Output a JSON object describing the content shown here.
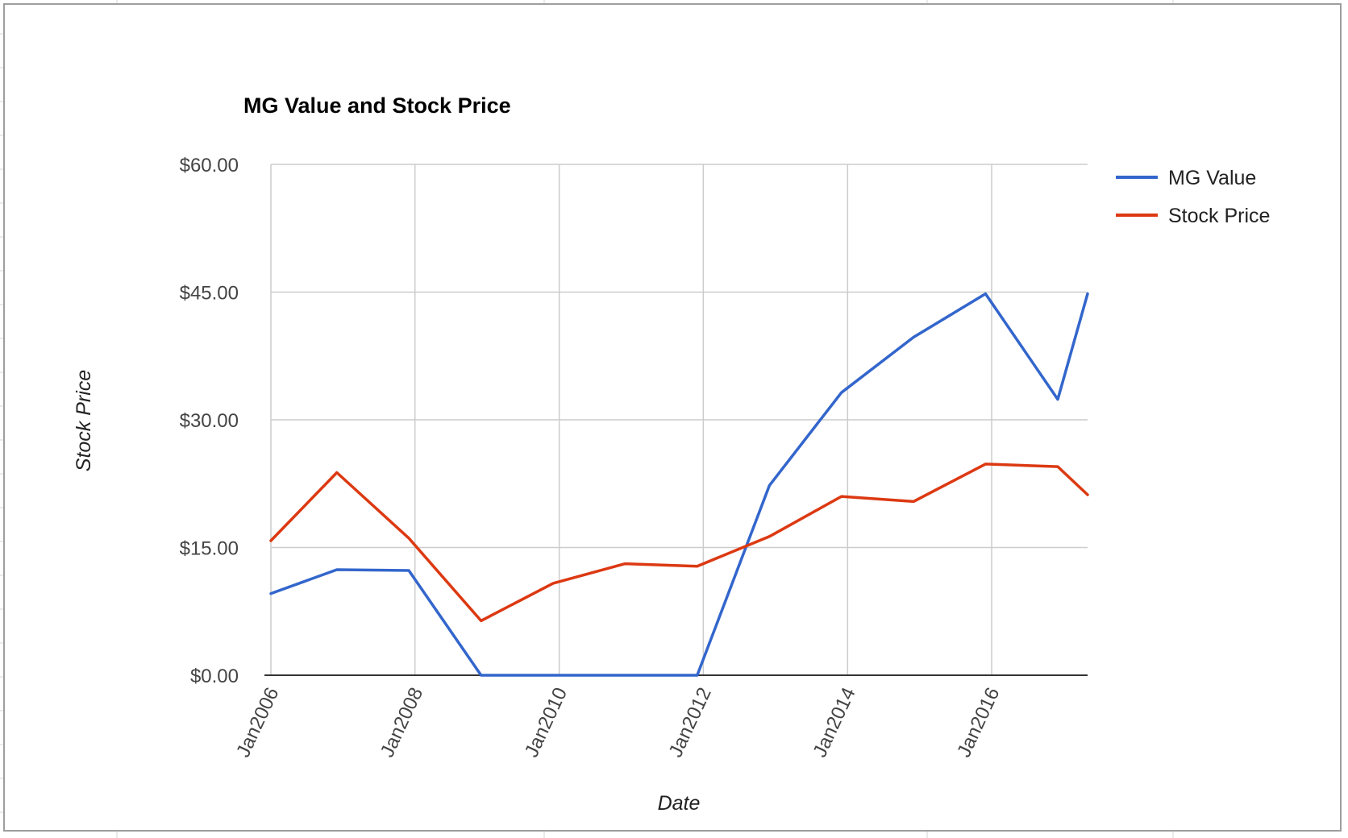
{
  "chart_data": {
    "type": "line",
    "title": "MG Value and Stock Price",
    "xlabel": "Date",
    "ylabel": "Stock Price",
    "x_tick_labels": [
      "Jan2006",
      "Jan2008",
      "Jan2010",
      "Jan2012",
      "Jan2014",
      "Jan2016"
    ],
    "y_tick_labels": [
      "$0.00",
      "$15.00",
      "$30.00",
      "$45.00",
      "$60.00"
    ],
    "y_ticks": [
      0,
      15,
      30,
      45,
      60
    ],
    "ylim": [
      0,
      60
    ],
    "xlim": [
      "2006-01",
      "2017-05"
    ],
    "grid": true,
    "legend_position": "right",
    "x": [
      "2006-01",
      "2006-12",
      "2007-12",
      "2008-12",
      "2009-12",
      "2010-12",
      "2011-12",
      "2012-12",
      "2013-12",
      "2014-12",
      "2015-12",
      "2016-12",
      "2017-05"
    ],
    "series": [
      {
        "name": "MG Value",
        "color": "#3366cc",
        "values": [
          9.6,
          12.4,
          12.3,
          0.0,
          0.0,
          0.0,
          0.0,
          22.3,
          33.2,
          39.7,
          44.8,
          32.4,
          44.8
        ]
      },
      {
        "name": "Stock Price",
        "color": "#dc3912",
        "values": [
          15.8,
          23.8,
          16.1,
          6.4,
          10.8,
          13.1,
          12.8,
          16.3,
          21.0,
          20.4,
          24.8,
          24.5,
          21.2
        ]
      }
    ]
  }
}
